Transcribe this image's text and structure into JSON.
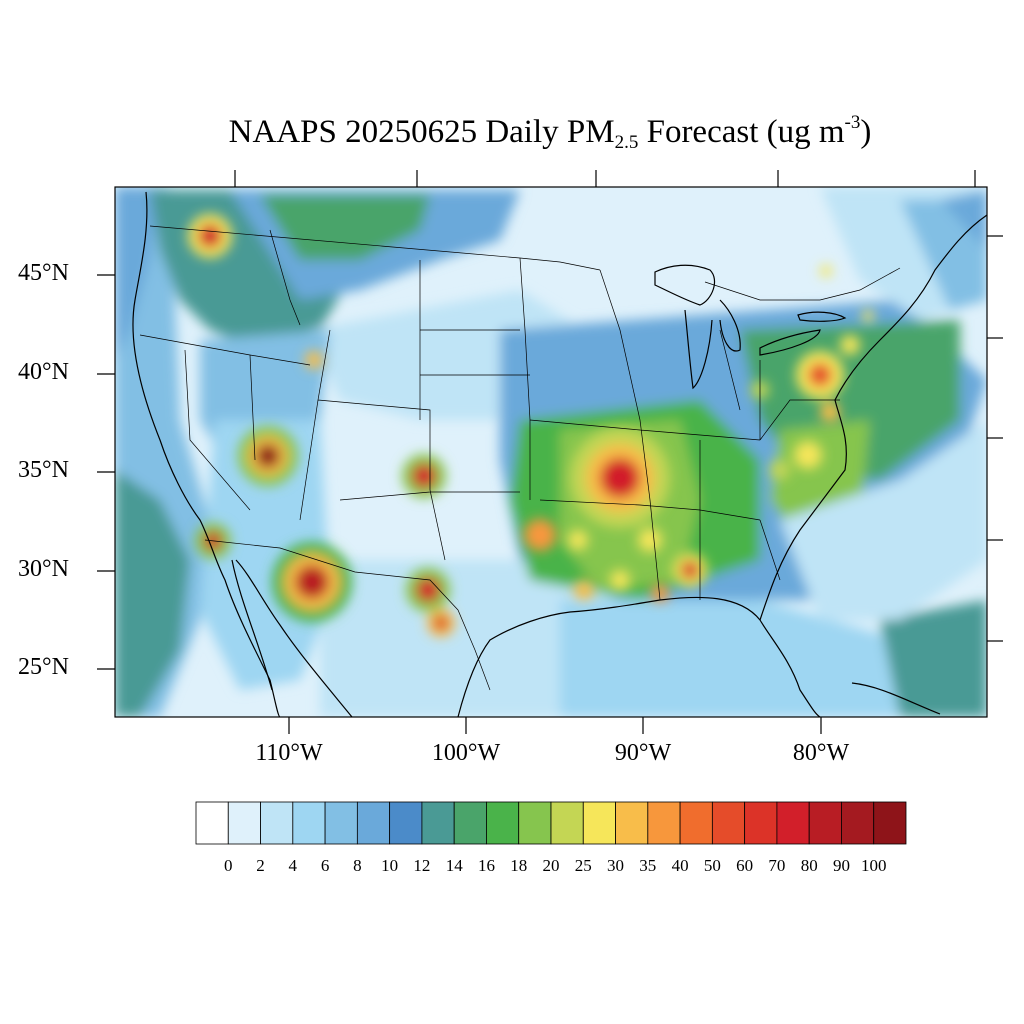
{
  "map": {
    "title_main": "NAAPS 20250625 Daily PM",
    "title_sub": "2.5",
    "title_mid": " Forecast (ug m",
    "title_sup": "-3",
    "title_end": ")",
    "lat_labels": [
      "45°N",
      "40°N",
      "35°N",
      "30°N",
      "25°N"
    ],
    "lon_labels": [
      "110°W",
      "100°W",
      "90°W",
      "80°W"
    ],
    "colorbar_labels": [
      "0",
      "2",
      "4",
      "6",
      "8",
      "10",
      "12",
      "14",
      "16",
      "18",
      "20",
      "25",
      "30",
      "35",
      "40",
      "50",
      "60",
      "70",
      "80",
      "90",
      "100"
    ],
    "colorbar_colors": [
      "#ffffff",
      "#dff1fb",
      "#bfe4f6",
      "#9ed6f2",
      "#82bfe4",
      "#6aa9da",
      "#4b8bc9",
      "#4a9a95",
      "#4aa46a",
      "#4ab34a",
      "#86c54e",
      "#c4d654",
      "#f6e65a",
      "#f8bd4a",
      "#f7973c",
      "#f06d2d",
      "#e54c2a",
      "#dc3328",
      "#d21f2a",
      "#b81d24",
      "#a41a20",
      "#8e1419"
    ],
    "plume_colors": {
      "background_light": "#dff1fb",
      "background_mid": "#bfe4f6",
      "ocean": "#9ed6f2",
      "dense": "#8e1419"
    }
  }
}
